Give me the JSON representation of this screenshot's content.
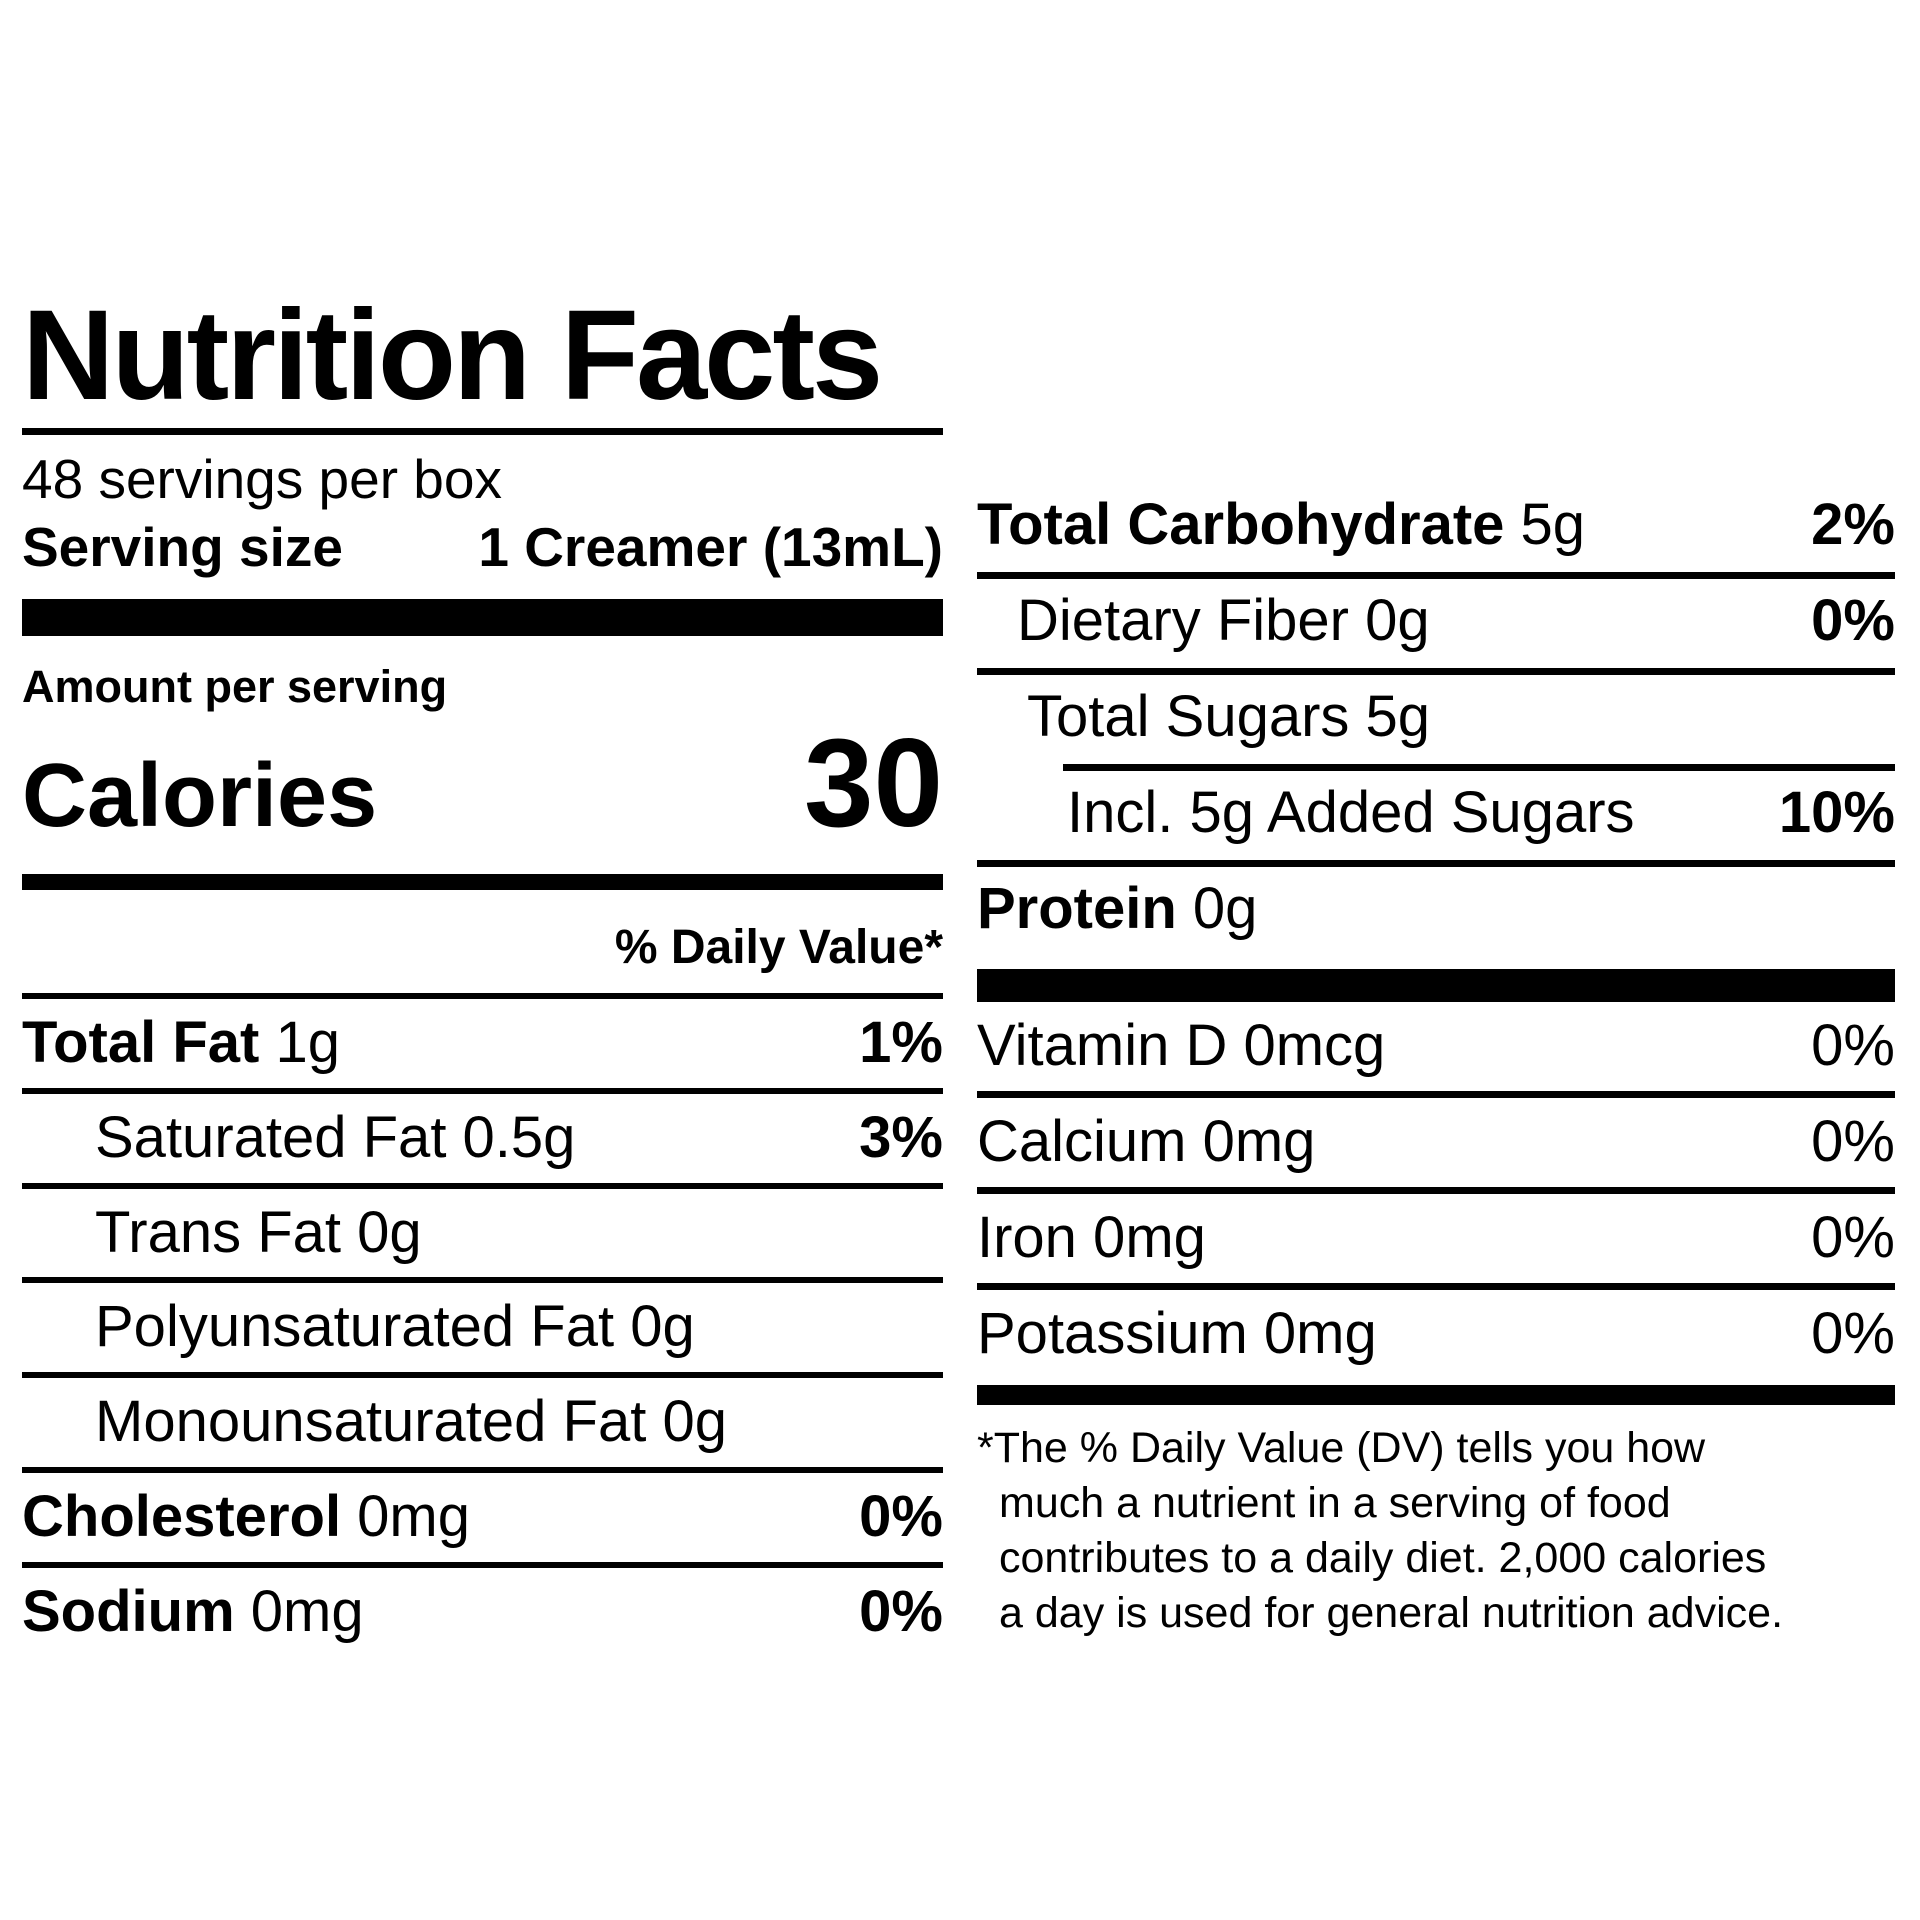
{
  "colors": {
    "ink": "#000000",
    "background": "#ffffff"
  },
  "label": {
    "title": "Nutrition Facts",
    "servings_per_container": "48 servings per box",
    "serving_size_label": "Serving size",
    "serving_size_value": "1 Creamer (13mL)",
    "amount_per_serving": "Amount per serving",
    "calories_label": "Calories",
    "calories_value": "30",
    "daily_value_header": "% Daily Value*",
    "left_rows": [
      {
        "bold": "Total Fat",
        "rest": " 1g",
        "dv": "1%"
      },
      {
        "bold": "",
        "rest": "Saturated Fat 0.5g",
        "dv": "3%"
      },
      {
        "bold": "",
        "rest": "Trans Fat 0g",
        "dv": ""
      },
      {
        "bold": "",
        "rest": "Polyunsaturated Fat 0g",
        "dv": ""
      },
      {
        "bold": "",
        "rest": "Monounsaturated Fat 0g",
        "dv": ""
      },
      {
        "bold": "Cholesterol",
        "rest": " 0mg",
        "dv": "0%"
      },
      {
        "bold": "Sodium",
        "rest": " 0mg",
        "dv": "0%"
      }
    ],
    "right_rows": [
      {
        "bold": "Total Carbohydrate",
        "rest": " 5g",
        "dv": "2%"
      },
      {
        "bold": "",
        "rest": "Dietary Fiber 0g",
        "dv": "0%"
      },
      {
        "bold": "",
        "rest": "Total Sugars 5g",
        "dv": ""
      },
      {
        "bold": "",
        "rest": "Incl. 5g Added Sugars",
        "dv": "10%"
      },
      {
        "bold": "Protein",
        "rest": " 0g",
        "dv": ""
      }
    ],
    "vitamin_rows": [
      {
        "text": "Vitamin D 0mcg",
        "dv": "0%"
      },
      {
        "text": "Calcium 0mg",
        "dv": "0%"
      },
      {
        "text": "Iron 0mg",
        "dv": "0%"
      },
      {
        "text": "Potassium 0mg",
        "dv": "0%"
      }
    ],
    "footnote_lines": [
      "*The % Daily Value (DV) tells you how",
      "much a nutrient in a serving of food",
      "contributes to a daily diet. 2,000 calories",
      "a day is used for general nutrition advice."
    ]
  }
}
